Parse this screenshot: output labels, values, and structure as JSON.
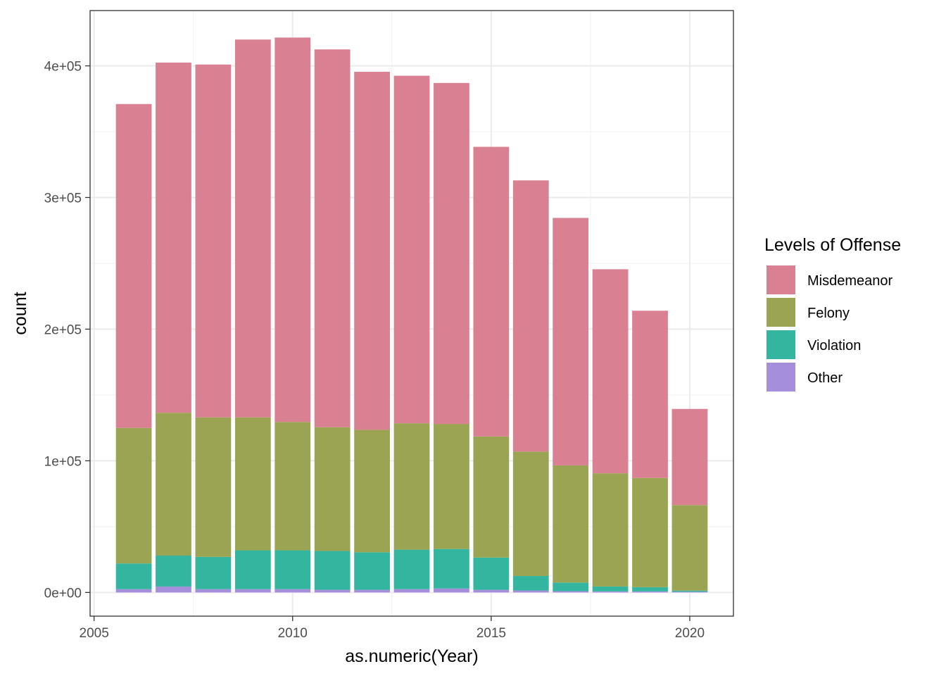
{
  "chart_data": {
    "type": "bar",
    "stacked": true,
    "x": [
      2006,
      2007,
      2008,
      2009,
      2010,
      2011,
      2012,
      2013,
      2014,
      2015,
      2016,
      2017,
      2018,
      2019,
      2020
    ],
    "series": [
      {
        "name": "Other",
        "color": "#A58FDB",
        "values": [
          2500,
          4500,
          2500,
          2500,
          2500,
          2000,
          2000,
          2500,
          3000,
          2000,
          1500,
          1000,
          800,
          800,
          500
        ]
      },
      {
        "name": "Violation",
        "color": "#33B5A0",
        "values": [
          19500,
          23500,
          24500,
          29500,
          29500,
          29500,
          28500,
          30000,
          30000,
          24500,
          11000,
          6500,
          3700,
          3200,
          900
        ]
      },
      {
        "name": "Felony",
        "color": "#9BA452",
        "values": [
          103000,
          108500,
          106000,
          101000,
          97500,
          94000,
          93000,
          96000,
          95000,
          92000,
          94500,
          89000,
          86000,
          83000,
          65000
        ]
      },
      {
        "name": "Misdemeanor",
        "color": "#DA8093",
        "values": [
          246000,
          266000,
          268000,
          287000,
          292000,
          287000,
          272000,
          264000,
          259000,
          220000,
          206000,
          188000,
          155000,
          127000,
          73000
        ]
      }
    ],
    "xlabel": "as.numeric(Year)",
    "ylabel": "count",
    "xlim": [
      2004.9,
      2021.1
    ],
    "ylim": [
      -18000,
      442000
    ],
    "xticks": [
      2005,
      2010,
      2015,
      2020
    ],
    "xtick_labels": [
      "2005",
      "2010",
      "2015",
      "2020"
    ],
    "yticks": [
      0,
      100000,
      200000,
      300000,
      400000
    ],
    "ytick_labels": [
      "0e+00",
      "1e+05",
      "2e+05",
      "3e+05",
      "4e+05"
    ],
    "grid": true,
    "legend": {
      "title": "Levels of Offense",
      "position": "right",
      "entries": [
        "Misdemeanor",
        "Felony",
        "Violation",
        "Other"
      ]
    }
  }
}
